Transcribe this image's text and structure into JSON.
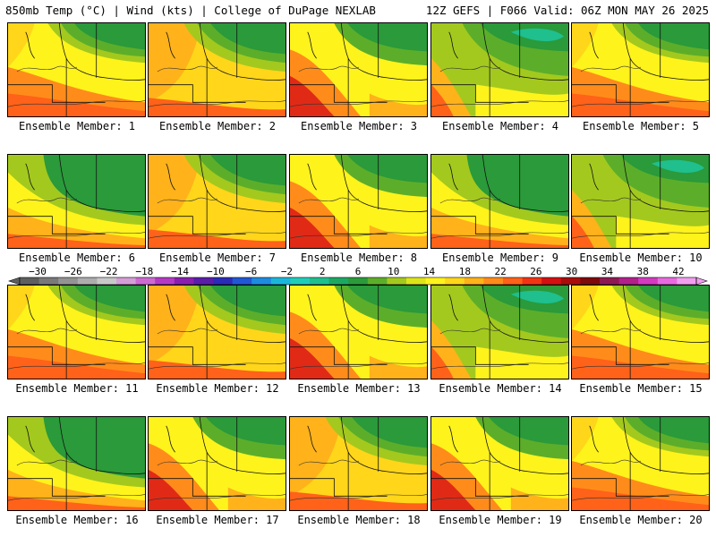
{
  "header": {
    "left": "850mb Temp (°C) | Wind (kts) | College of DuPage NEXLAB",
    "right": "12Z GEFS | F066 Valid: 06Z MON MAY 26 2025"
  },
  "panels": [
    {
      "label": "Ensemble Member: 1",
      "theme": 0
    },
    {
      "label": "Ensemble Member: 2",
      "theme": 1
    },
    {
      "label": "Ensemble Member: 3",
      "theme": 2
    },
    {
      "label": "Ensemble Member: 4",
      "theme": 3
    },
    {
      "label": "Ensemble Member: 5",
      "theme": 0
    },
    {
      "label": "Ensemble Member: 6",
      "theme": 4
    },
    {
      "label": "Ensemble Member: 7",
      "theme": 1
    },
    {
      "label": "Ensemble Member: 8",
      "theme": 2
    },
    {
      "label": "Ensemble Member: 9",
      "theme": 4
    },
    {
      "label": "Ensemble Member: 10",
      "theme": 3
    },
    {
      "label": "Ensemble Member: 11",
      "theme": 0
    },
    {
      "label": "Ensemble Member: 12",
      "theme": 1
    },
    {
      "label": "Ensemble Member: 13",
      "theme": 2
    },
    {
      "label": "Ensemble Member: 14",
      "theme": 3
    },
    {
      "label": "Ensemble Member: 15",
      "theme": 0
    },
    {
      "label": "Ensemble Member: 16",
      "theme": 4
    },
    {
      "label": "Ensemble Member: 17",
      "theme": 2
    },
    {
      "label": "Ensemble Member: 18",
      "theme": 1
    },
    {
      "label": "Ensemble Member: 19",
      "theme": 2
    },
    {
      "label": "Ensemble Member: 20",
      "theme": 0
    }
  ],
  "colorbar": {
    "ticks": [
      "-30",
      "-26",
      "-22",
      "-18",
      "-14",
      "-10",
      "-6",
      "-2",
      "2",
      "6",
      "10",
      "14",
      "18",
      "22",
      "26",
      "30",
      "34",
      "38",
      "42"
    ],
    "colors": [
      "#5f5f5f",
      "#797979",
      "#939393",
      "#adadad",
      "#c8c8c8",
      "#d59ed7",
      "#cd6ad2",
      "#b43ac4",
      "#8a1fb0",
      "#5a1ea8",
      "#2b2bb8",
      "#2157d2",
      "#1d8bdf",
      "#1ab6d9",
      "#20cdb8",
      "#1fbf8e",
      "#1da862",
      "#2a9a3a",
      "#5cae2a",
      "#a3c91e",
      "#dde51a",
      "#fff31c",
      "#ffd61a",
      "#ffb21a",
      "#ff8c1a",
      "#ff6218",
      "#f23414",
      "#d41010",
      "#a80c0c",
      "#7e0a0a",
      "#8e1a52",
      "#b2208a",
      "#d43ac0",
      "#e86ae0",
      "#f29ef0"
    ]
  },
  "palette": {
    "cold_green": "#2a9a3a",
    "mid_green": "#5cae2a",
    "light_green": "#a3c91e",
    "yellow": "#fff31c",
    "yellow_orange": "#ffd61a",
    "orange": "#ffb21a",
    "dark_orange": "#ff8c1a",
    "red_orange": "#ff6218",
    "red": "#e02a16",
    "teal": "#1fbf8e"
  }
}
